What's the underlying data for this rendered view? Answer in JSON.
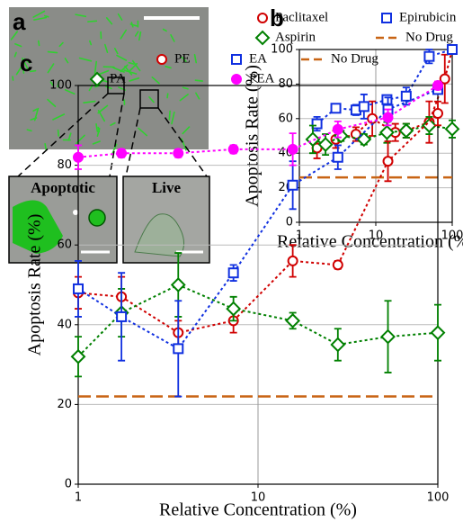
{
  "panel_a": {
    "label": "a",
    "insets": [
      "Apoptotic",
      "Live"
    ]
  },
  "chart_data": [
    {
      "type": "line",
      "panel_label": "b",
      "xscale": "log",
      "grid": true,
      "ylabel": "Apoptosis Rate (%)",
      "xlabel": "Relative Concentration (%)",
      "xlim": [
        1,
        100
      ],
      "xticks": [
        1,
        10,
        100
      ],
      "ylim": [
        0,
        100
      ],
      "yticks": [
        0,
        20,
        40,
        60,
        80,
        100
      ],
      "series": [
        {
          "name": "Paclitaxel",
          "color": "#d00000",
          "marker": "circle",
          "filled": false,
          "x": [
            1.7,
            3,
            5.5,
            9,
            18,
            25,
            50,
            80,
            100
          ],
          "values": [
            43,
            48,
            51,
            60,
            52,
            53,
            58,
            83,
            100
          ],
          "errors": [
            6,
            5,
            4,
            10,
            5,
            4,
            12,
            14,
            2
          ]
        },
        {
          "name": "Epirubicin",
          "color": "#1030e0",
          "marker": "square",
          "filled": false,
          "x": [
            1.7,
            3,
            5.5,
            7,
            14,
            25,
            50,
            100
          ],
          "values": [
            57,
            66,
            65,
            67,
            71,
            73,
            96,
            100
          ],
          "errors": [
            4,
            2,
            3,
            7,
            2,
            5,
            4,
            1
          ]
        },
        {
          "name": "Aspirin",
          "color": "#008000",
          "marker": "diamond",
          "filled": false,
          "x": [
            1.5,
            2.2,
            3.5,
            7,
            14,
            25,
            50,
            100
          ],
          "values": [
            48,
            45,
            50,
            48,
            52,
            53,
            56,
            54
          ],
          "errors": [
            8,
            6,
            3,
            3,
            6,
            4,
            5,
            5
          ]
        }
      ],
      "reference_lines": [
        {
          "name": "No Drug",
          "value": 26,
          "color": "#c86414"
        }
      ]
    },
    {
      "type": "line",
      "panel_label": "c",
      "xscale": "log",
      "grid": true,
      "ylabel": "Apoptosis Rate (%)",
      "xlabel": "Relative Concentration (%)",
      "xlim": [
        1,
        100
      ],
      "xticks": [
        1,
        10,
        100
      ],
      "ylim": [
        0,
        100
      ],
      "yticks": [
        0,
        20,
        40,
        60,
        80,
        100
      ],
      "series": [
        {
          "name": "PE",
          "color": "#d00000",
          "marker": "circle",
          "filled": false,
          "x": [
            1,
            1.74,
            3.6,
            7.3,
            15.6,
            27.8,
            52.8,
            100
          ],
          "values": [
            48,
            47,
            38,
            41,
            56,
            55,
            81,
            93
          ],
          "errors": [
            4,
            5,
            3,
            3,
            4,
            1,
            5,
            3
          ]
        },
        {
          "name": "PA",
          "color": "#008000",
          "marker": "diamond",
          "filled": false,
          "x": [
            1,
            1.74,
            3.6,
            7.3,
            15.6,
            27.8,
            52.8,
            100
          ],
          "values": [
            32,
            43,
            50,
            44,
            41,
            35,
            37,
            38
          ],
          "errors": [
            5,
            6,
            8,
            3,
            2,
            4,
            9,
            7
          ]
        },
        {
          "name": "EA",
          "color": "#1030e0",
          "marker": "square",
          "filled": false,
          "x": [
            1,
            1.74,
            3.6,
            7.3,
            15.6,
            27.8,
            52.8,
            100
          ],
          "values": [
            49,
            42,
            34,
            53,
            75,
            82,
            94,
            99
          ],
          "errors": [
            7,
            11,
            12,
            2,
            6,
            3,
            3,
            1
          ]
        },
        {
          "name": "PEA",
          "color": "#ff00ff",
          "marker": "circle",
          "filled": true,
          "x": [
            1,
            1.74,
            3.6,
            7.3,
            15.6,
            27.8,
            52.8,
            100
          ],
          "values": [
            82,
            83,
            83,
            84,
            84,
            89,
            92,
            100
          ],
          "errors": [
            3,
            1,
            1,
            1,
            4,
            2,
            2,
            1
          ]
        }
      ],
      "reference_lines": [
        {
          "name": "No Drug",
          "value": 22,
          "color": "#c86414"
        }
      ]
    }
  ]
}
